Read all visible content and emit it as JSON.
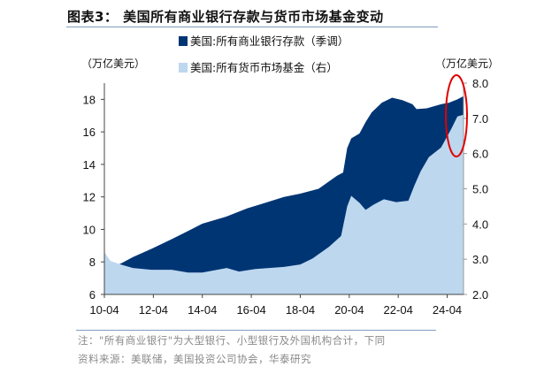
{
  "title": "图表3：  美国所有商业银行存款与货币市场基金变动",
  "notes": {
    "note": "注：\"所有商业银行\"为大型银行、小型银行及外国机构合计，下同",
    "source": "资料来源：美联储，美国投资公司协会，华泰研究"
  },
  "chart_data": {
    "type": "area",
    "title": "",
    "ylabel_left": "（万亿美元）",
    "ylabel_right": "（万亿美元）",
    "ylim_left": [
      6,
      19
    ],
    "ylim_right": [
      2.0,
      8.0
    ],
    "yticks_left": [
      "6",
      "8",
      "10",
      "12",
      "14",
      "16",
      "18"
    ],
    "yticks_right": [
      "2.0",
      "3.0",
      "4.0",
      "5.0",
      "6.0",
      "7.0",
      "8.0"
    ],
    "xticks": [
      "10-04",
      "12-04",
      "14-04",
      "16-04",
      "18-04",
      "20-04",
      "22-04",
      "24-04"
    ],
    "xlim": [
      "2010-04",
      "2024-12"
    ],
    "grid": false,
    "legend_position": "top-center",
    "annotation": "red ellipse highlighting latest values",
    "series": [
      {
        "name": "美国:所有商业银行存款（季调）",
        "axis": "left",
        "color": "#003574",
        "points": [
          [
            "2010-04",
            7.6
          ],
          [
            "2010-12",
            7.9
          ],
          [
            "2011-06",
            8.3
          ],
          [
            "2012-03",
            8.8
          ],
          [
            "2013-01",
            9.4
          ],
          [
            "2013-09",
            9.9
          ],
          [
            "2014-04",
            10.35
          ],
          [
            "2015-04",
            10.8
          ],
          [
            "2016-02",
            11.3
          ],
          [
            "2016-10",
            11.6
          ],
          [
            "2017-08",
            12.0
          ],
          [
            "2018-04",
            12.2
          ],
          [
            "2019-01",
            12.5
          ],
          [
            "2019-10",
            13.3
          ],
          [
            "2020-01",
            13.5
          ],
          [
            "2020-03",
            15.0
          ],
          [
            "2020-05",
            15.6
          ],
          [
            "2020-09",
            15.9
          ],
          [
            "2020-12",
            16.6
          ],
          [
            "2021-03",
            17.2
          ],
          [
            "2021-08",
            17.8
          ],
          [
            "2022-01",
            18.1
          ],
          [
            "2022-06",
            17.95
          ],
          [
            "2022-11",
            17.7
          ],
          [
            "2023-01",
            17.4
          ],
          [
            "2023-06",
            17.45
          ],
          [
            "2024-01",
            17.7
          ],
          [
            "2024-05",
            17.8
          ],
          [
            "2024-09",
            18.0
          ],
          [
            "2024-12",
            18.2
          ]
        ]
      },
      {
        "name": "美国:所有货币市场基金（右）",
        "axis": "right",
        "color": "#bdd7ee",
        "points": [
          [
            "2010-04",
            3.2
          ],
          [
            "2010-07",
            2.95
          ],
          [
            "2010-12",
            2.85
          ],
          [
            "2011-06",
            2.75
          ],
          [
            "2012-03",
            2.7
          ],
          [
            "2013-01",
            2.7
          ],
          [
            "2013-09",
            2.62
          ],
          [
            "2014-04",
            2.62
          ],
          [
            "2015-04",
            2.75
          ],
          [
            "2015-10",
            2.65
          ],
          [
            "2016-06",
            2.72
          ],
          [
            "2017-08",
            2.78
          ],
          [
            "2018-04",
            2.85
          ],
          [
            "2018-10",
            3.02
          ],
          [
            "2019-06",
            3.35
          ],
          [
            "2019-12",
            3.66
          ],
          [
            "2020-03",
            4.5
          ],
          [
            "2020-05",
            4.8
          ],
          [
            "2020-09",
            4.6
          ],
          [
            "2020-12",
            4.4
          ],
          [
            "2021-04",
            4.55
          ],
          [
            "2021-09",
            4.7
          ],
          [
            "2022-03",
            4.62
          ],
          [
            "2022-09",
            4.66
          ],
          [
            "2022-12",
            5.1
          ],
          [
            "2023-03",
            5.5
          ],
          [
            "2023-07",
            5.9
          ],
          [
            "2024-01",
            6.17
          ],
          [
            "2024-06",
            6.7
          ],
          [
            "2024-09",
            7.05
          ],
          [
            "2024-12",
            7.1
          ]
        ]
      }
    ]
  }
}
